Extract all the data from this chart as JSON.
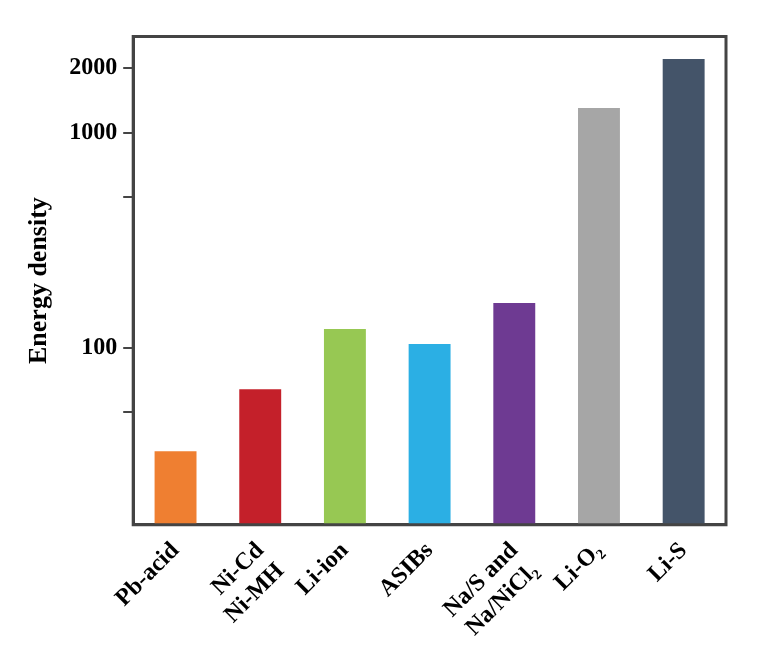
{
  "chart_data": {
    "type": "bar",
    "ylabel": "Energy density",
    "categories": [
      "Pb-acid",
      "Ni-Cd Ni-MH",
      "Li-ion",
      "ASIBs",
      "Na/S and Na/NiCl₂",
      "Li-O₂",
      "Li-S"
    ],
    "values": [
      33,
      64,
      122,
      104,
      161,
      1300,
      2200
    ],
    "colors": [
      "#ef7f31",
      "#c4202a",
      "#97c853",
      "#2bafe4",
      "#6e3a92",
      "#a6a6a6",
      "#445469"
    ],
    "log": true,
    "ylim": [
      15,
      2800
    ],
    "yticks": [
      {
        "value": 50,
        "label": null
      },
      100,
      {
        "value": 500,
        "label": null
      },
      1000,
      2000
    ],
    "grid": false,
    "legend": false
  }
}
